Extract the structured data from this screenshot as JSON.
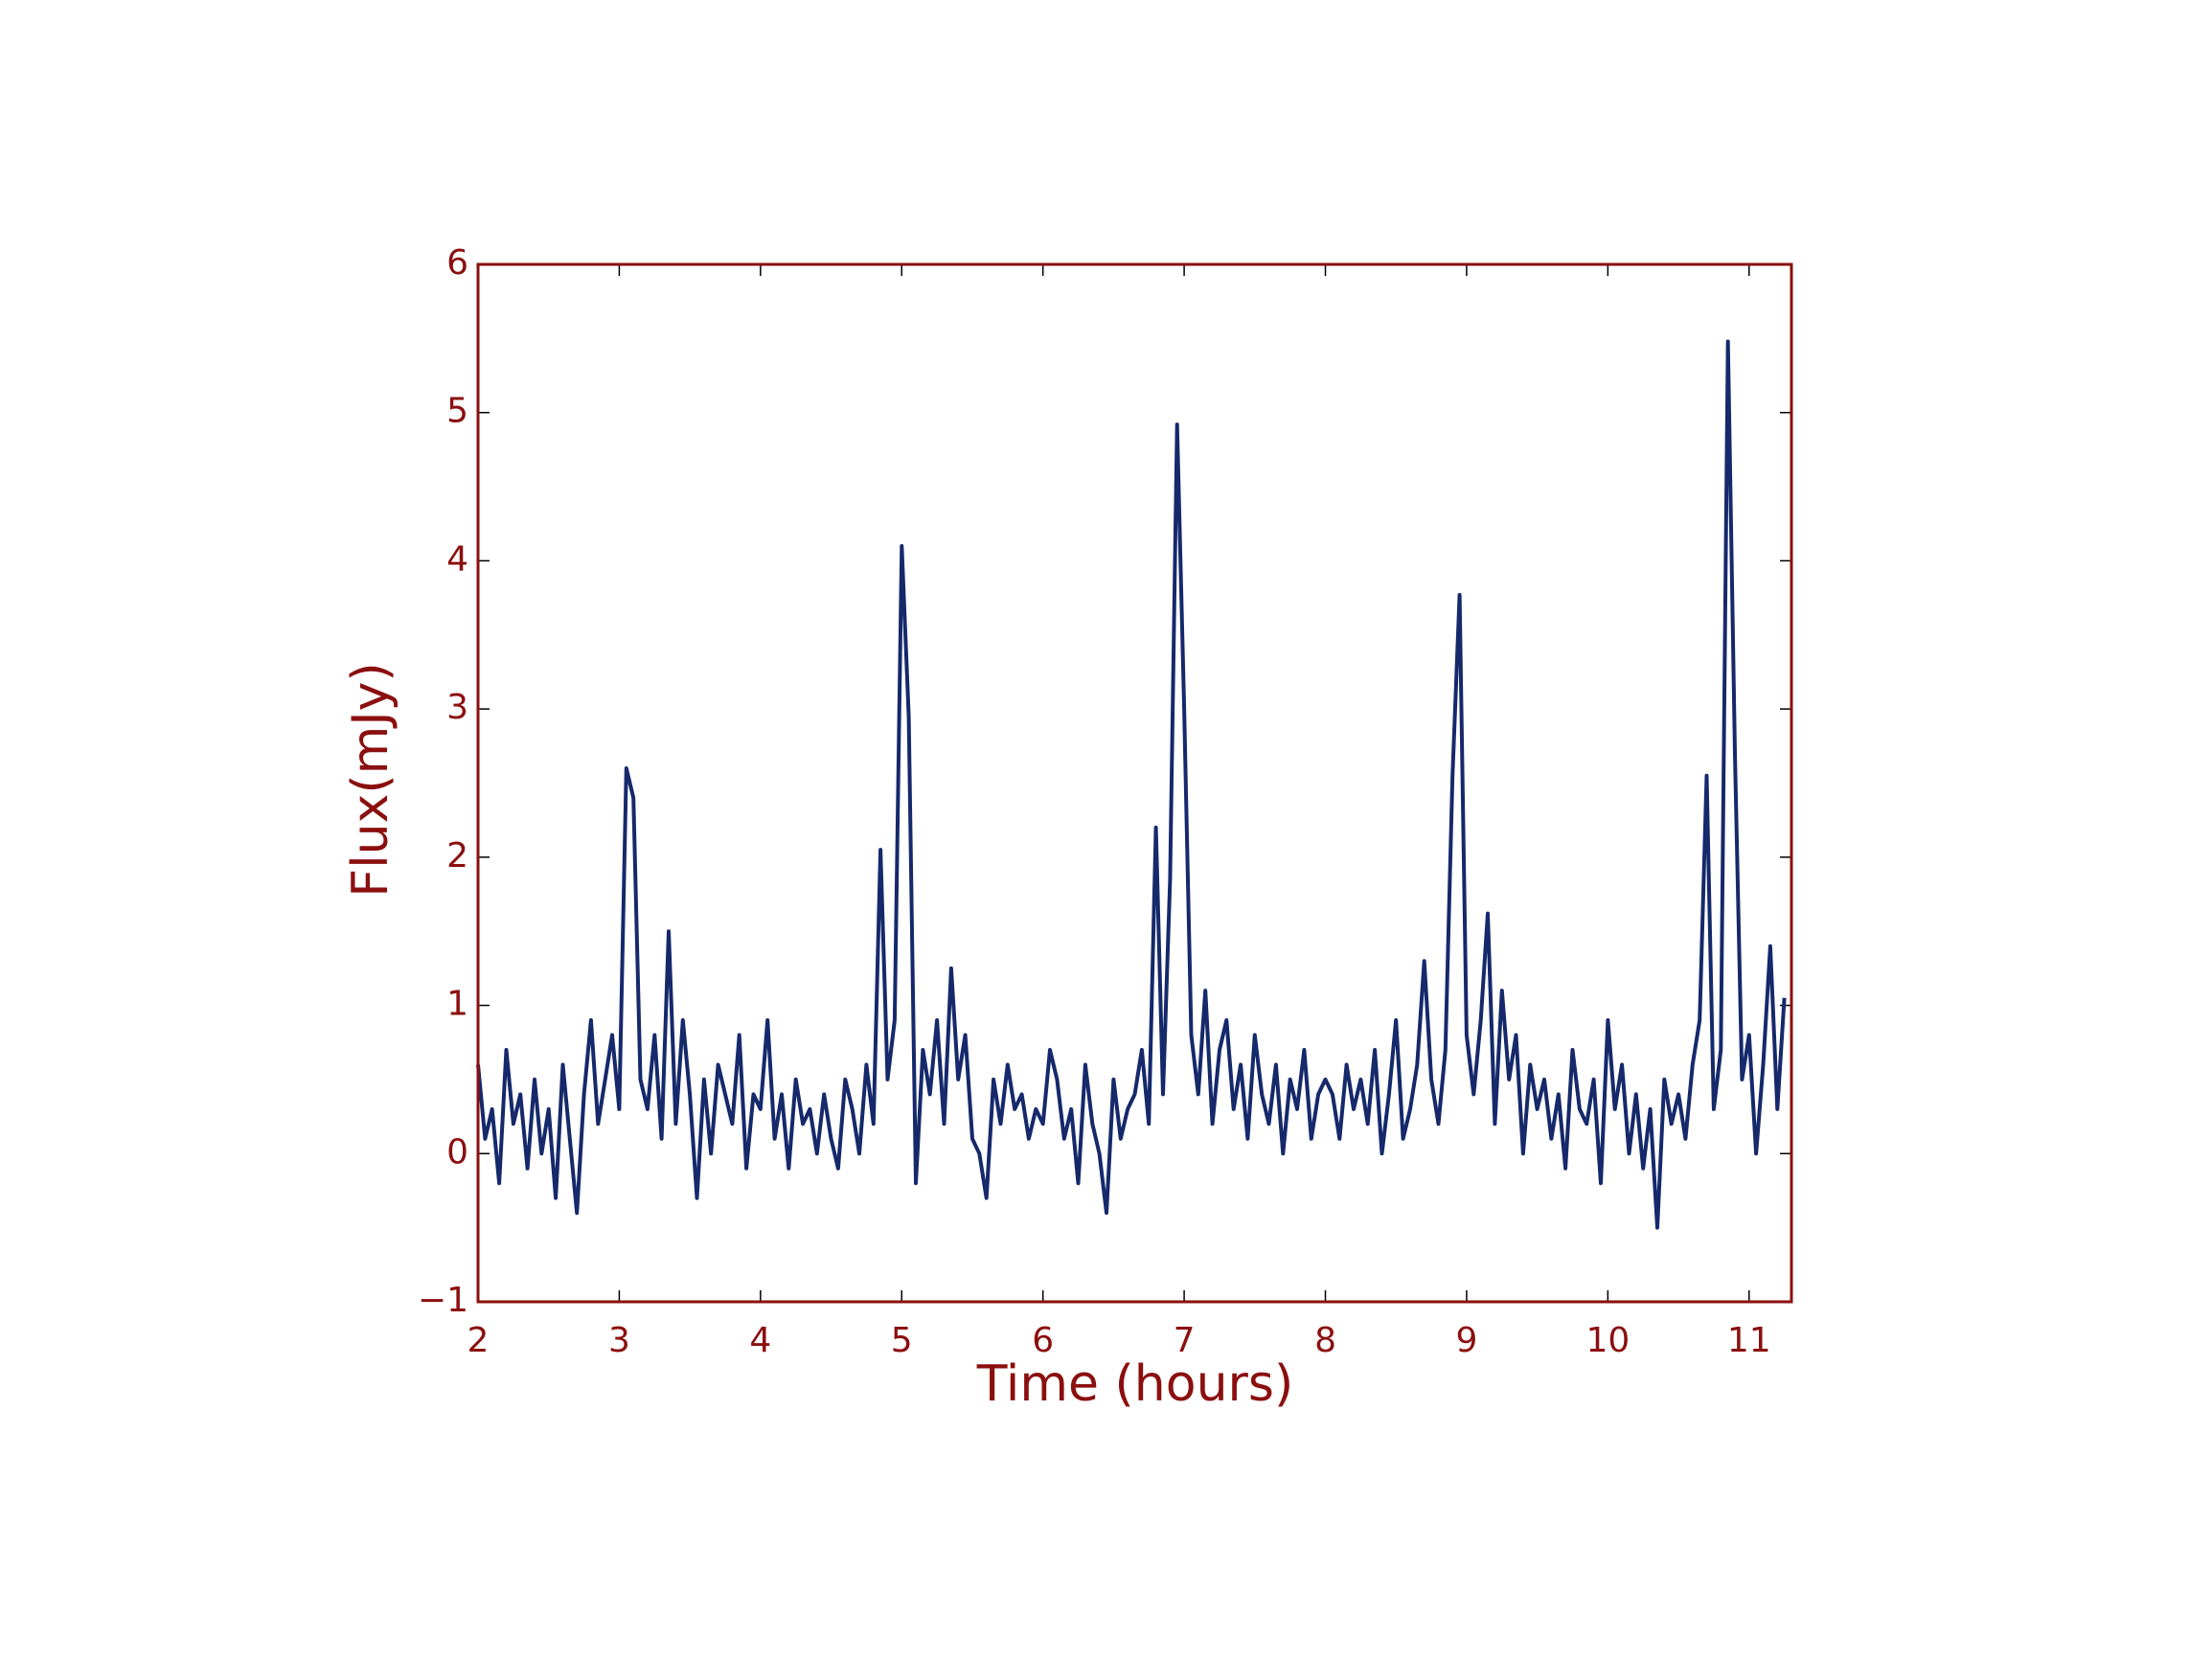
{
  "chart_data": {
    "type": "line",
    "xlabel": "Time (hours)",
    "ylabel": "Flux(mJy)",
    "xlim": [
      2,
      11.3
    ],
    "ylim": [
      -1,
      6
    ],
    "xticks": [
      2,
      3,
      4,
      5,
      6,
      7,
      8,
      9,
      10,
      11
    ],
    "yticks": [
      {
        "value": -1,
        "label": "−1"
      },
      0,
      1,
      2,
      3,
      4,
      5,
      6
    ],
    "axis_color": "#8b0f0f",
    "x": [
      2,
      2.05,
      2.1,
      2.15,
      2.2,
      2.25,
      2.3,
      2.35,
      2.4,
      2.45,
      2.5,
      2.55,
      2.6,
      2.65,
      2.7,
      2.75,
      2.8,
      2.85,
      2.9,
      2.95,
      3,
      3.05,
      3.1,
      3.15,
      3.2,
      3.25,
      3.3,
      3.35,
      3.4,
      3.45,
      3.5,
      3.55,
      3.6,
      3.65,
      3.7,
      3.75,
      3.8,
      3.85,
      3.9,
      3.95,
      4,
      4.05,
      4.1,
      4.15,
      4.2,
      4.25,
      4.3,
      4.35,
      4.4,
      4.45,
      4.5,
      4.55,
      4.6,
      4.65,
      4.7,
      4.75,
      4.8,
      4.85,
      4.9,
      4.95,
      5,
      5.05,
      5.1,
      5.15,
      5.2,
      5.25,
      5.3,
      5.35,
      5.4,
      5.45,
      5.5,
      5.55,
      5.6,
      5.65,
      5.7,
      5.75,
      5.8,
      5.85,
      5.9,
      5.95,
      6,
      6.05,
      6.1,
      6.15,
      6.2,
      6.25,
      6.3,
      6.35,
      6.4,
      6.45,
      6.5,
      6.55,
      6.6,
      6.65,
      6.7,
      6.75,
      6.8,
      6.85,
      6.9,
      6.95,
      7,
      7.05,
      7.1,
      7.15,
      7.2,
      7.25,
      7.3,
      7.35,
      7.4,
      7.45,
      7.5,
      7.55,
      7.6,
      7.65,
      7.7,
      7.75,
      7.8,
      7.85,
      7.9,
      7.95,
      8,
      8.05,
      8.1,
      8.15,
      8.2,
      8.25,
      8.3,
      8.35,
      8.4,
      8.45,
      8.5,
      8.55,
      8.6,
      8.65,
      8.7,
      8.75,
      8.8,
      8.85,
      8.9,
      8.95,
      9,
      9.05,
      9.1,
      9.15,
      9.2,
      9.25,
      9.3,
      9.35,
      9.4,
      9.45,
      9.5,
      9.55,
      9.6,
      9.65,
      9.7,
      9.75,
      9.8,
      9.85,
      9.9,
      9.95,
      10,
      10.05,
      10.1,
      10.15,
      10.2,
      10.25,
      10.3,
      10.35,
      10.4,
      10.45,
      10.5,
      10.55,
      10.6,
      10.65,
      10.7,
      10.75,
      10.8,
      10.85,
      10.9,
      10.95,
      11,
      11.05,
      11.1,
      11.15,
      11.2,
      11.25
    ],
    "series": [
      {
        "color": "#15296b",
        "values": [
          0.6,
          0.1,
          0.3,
          -0.2,
          0.7,
          0.2,
          0.4,
          -0.1,
          0.5,
          0.0,
          0.3,
          -0.3,
          0.6,
          0.1,
          -0.4,
          0.4,
          0.9,
          0.2,
          0.5,
          0.8,
          0.3,
          2.6,
          2.4,
          0.5,
          0.3,
          0.8,
          0.1,
          1.5,
          0.2,
          0.9,
          0.4,
          -0.3,
          0.5,
          0.0,
          0.6,
          0.4,
          0.2,
          0.8,
          -0.1,
          0.4,
          0.3,
          0.9,
          0.1,
          0.4,
          -0.1,
          0.5,
          0.2,
          0.3,
          0.0,
          0.4,
          0.1,
          -0.1,
          0.5,
          0.3,
          0.0,
          0.6,
          0.2,
          2.05,
          0.5,
          0.9,
          4.1,
          2.95,
          -0.2,
          0.7,
          0.4,
          0.9,
          0.2,
          1.25,
          0.5,
          0.8,
          0.1,
          0.0,
          -0.3,
          0.5,
          0.2,
          0.6,
          0.3,
          0.4,
          0.1,
          0.3,
          0.2,
          0.7,
          0.5,
          0.1,
          0.3,
          -0.2,
          0.6,
          0.2,
          0.0,
          -0.4,
          0.5,
          0.1,
          0.3,
          0.4,
          0.7,
          0.2,
          2.2,
          0.4,
          1.85,
          4.92,
          3.0,
          0.8,
          0.4,
          1.1,
          0.2,
          0.7,
          0.9,
          0.3,
          0.6,
          0.1,
          0.8,
          0.4,
          0.2,
          0.6,
          0.0,
          0.5,
          0.3,
          0.7,
          0.1,
          0.4,
          0.5,
          0.4,
          0.1,
          0.6,
          0.3,
          0.5,
          0.2,
          0.7,
          0.0,
          0.4,
          0.9,
          0.1,
          0.3,
          0.6,
          1.3,
          0.5,
          0.2,
          0.7,
          2.55,
          3.77,
          0.8,
          0.4,
          0.9,
          1.62,
          0.2,
          1.1,
          0.5,
          0.8,
          0.0,
          0.6,
          0.3,
          0.5,
          0.1,
          0.4,
          -0.1,
          0.7,
          0.3,
          0.2,
          0.5,
          -0.2,
          0.9,
          0.3,
          0.6,
          0.0,
          0.4,
          -0.1,
          0.3,
          -0.5,
          0.5,
          0.2,
          0.4,
          0.1,
          0.6,
          0.9,
          2.55,
          0.3,
          0.7,
          5.48,
          2.7,
          0.5,
          0.8,
          0.0,
          0.6,
          1.4,
          0.3,
          1.05
        ]
      }
    ]
  }
}
